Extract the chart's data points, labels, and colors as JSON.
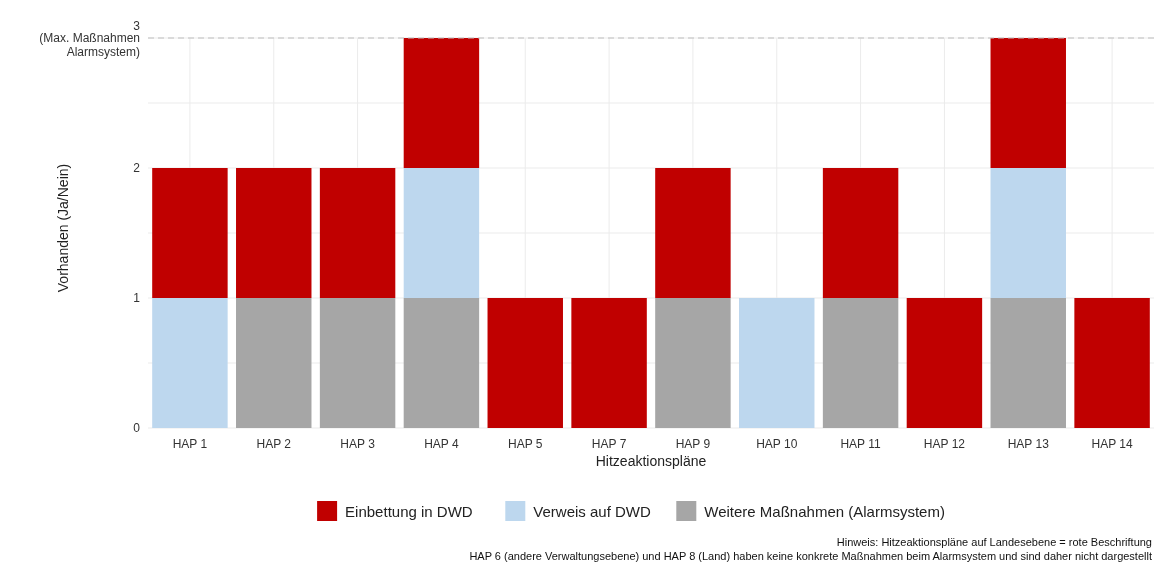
{
  "chart_data": {
    "type": "bar",
    "stacked": true,
    "categories": [
      "HAP 1",
      "HAP 2",
      "HAP 3",
      "HAP 4",
      "HAP 5",
      "HAP 7",
      "HAP 9",
      "HAP 10",
      "HAP 11",
      "HAP 12",
      "HAP 13",
      "HAP 14"
    ],
    "series": [
      {
        "name": "Weitere Maßnahmen (Alarmsystem)",
        "color": "#a6a6a6",
        "values": [
          0,
          1,
          1,
          1,
          0,
          0,
          1,
          0,
          1,
          0,
          1,
          0
        ]
      },
      {
        "name": "Verweis auf DWD",
        "color": "#bdd7ee",
        "values": [
          1,
          0,
          0,
          1,
          0,
          0,
          0,
          1,
          0,
          0,
          1,
          0
        ]
      },
      {
        "name": "Einbettung in DWD",
        "color": "#c00000",
        "values": [
          1,
          1,
          1,
          1,
          1,
          1,
          1,
          0,
          1,
          1,
          1,
          1
        ]
      }
    ],
    "xlabel": "Hitzeaktionspläne",
    "ylabel": "Vorhanden (Ja/Nein)",
    "ylim": [
      0,
      3
    ],
    "yticks": [
      0,
      {
        "value": 0.5,
        "label": null
      },
      1,
      {
        "value": 1.5,
        "label": null
      },
      2,
      {
        "value": 2.5,
        "label": null
      },
      3
    ],
    "grid": true,
    "legend": "bottom",
    "ref_lines": [
      {
        "axis": "y",
        "value": 3,
        "label": "(Max. Maßnahmen Alarmsystem)",
        "color": "#bfbfbf",
        "line_style": "dashed"
      }
    ],
    "annotations": [
      "Hinweis: Hitzeaktionspläne auf Landesebene = rote Beschriftung",
      "HAP 6 (andere Verwaltungsebene) und HAP 8 (Land) haben keine konkrete Maßnahmen beim Alarmsystem und sind daher nicht dargestellt"
    ]
  }
}
